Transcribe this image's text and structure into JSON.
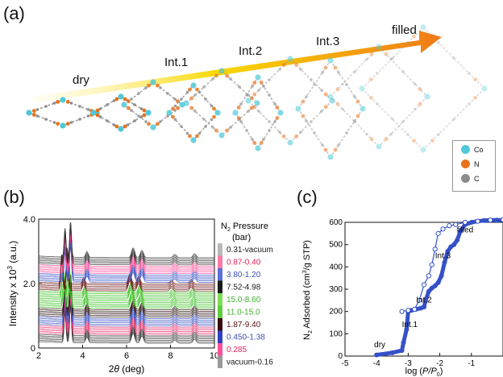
{
  "panels": {
    "a": {
      "label": "(a)",
      "stages": [
        "dry",
        "Int.1",
        "Int.2",
        "Int.3",
        "filled"
      ],
      "legend": [
        {
          "element": "Co",
          "color": "#4fc8d8"
        },
        {
          "element": "N",
          "color": "#e8721c"
        },
        {
          "element": "C",
          "color": "#8c8c8c"
        }
      ],
      "arrow_gradient": [
        "#fff8c0",
        "#f9d800",
        "#f07a18"
      ]
    },
    "b": {
      "label": "(b)"
    },
    "c": {
      "label": "(c)"
    }
  },
  "chart_data": [
    {
      "type": "line",
      "panel": "b",
      "xlabel": "2θ (deg)",
      "ylabel": "Intensity x 10³ (a.u.)",
      "xlim": [
        2,
        10
      ],
      "ylim": [
        0,
        4.0
      ],
      "xticks": [
        "2",
        "4",
        "6",
        "8",
        "10"
      ],
      "yticks": [
        "0",
        "2.0",
        "4.0"
      ],
      "legend_title": "N₂ Pressure (bar)",
      "legend_title_parts": {
        "main": "N",
        "sub": "2",
        "rest": " Pressure",
        "unit": "(bar)"
      },
      "pressure_ranges": [
        {
          "label": "0.31-vacuum",
          "color": "#1a1a1a",
          "swatch": "#b9b9b9"
        },
        {
          "label": "0.87-0.40",
          "color": "#e0245e",
          "swatch": "#ff7aa8"
        },
        {
          "label": "3.80-1.20",
          "color": "#3c4fb0",
          "swatch": "#5a6fd8"
        },
        {
          "label": "7.52-4.98",
          "color": "#1a1a1a",
          "swatch": "#1a1a1a"
        },
        {
          "label": "15.0-8.60",
          "color": "#3fae2a",
          "swatch": "#7fdd55"
        },
        {
          "label": "11.0-15.0",
          "color": "#3fae2a",
          "swatch": "#5fcc40"
        },
        {
          "label": "1.87-9.40",
          "color": "#5a1010",
          "swatch": "#3a0808"
        },
        {
          "label": "0.450-1.38",
          "color": "#3c4fb0",
          "swatch": "#3040c0"
        },
        {
          "label": "0.285",
          "color": "#e0245e",
          "swatch": "#ff4f9a"
        },
        {
          "label": "vacuum-0.16",
          "color": "#1a1a1a",
          "swatch": "#9a9a9a"
        }
      ],
      "band_colors": [
        "#333333",
        "#e8336e",
        "#3a52c4",
        "#2a1010",
        "#43c22a",
        "#43c22a",
        "#6a1010",
        "#3a52c4",
        "#ff4f9a",
        "#333333"
      ],
      "curves_per_band": 6,
      "peaks": [
        {
          "pos": 3.2,
          "h": 0.9,
          "w": 0.06
        },
        {
          "pos": 3.45,
          "h": 1.1,
          "w": 0.06
        },
        {
          "pos": 4.2,
          "h": 0.18,
          "w": 0.08
        },
        {
          "pos": 6.3,
          "h": 0.3,
          "w": 0.1
        },
        {
          "pos": 6.7,
          "h": 0.22,
          "w": 0.1
        },
        {
          "pos": 8.2,
          "h": 0.1,
          "w": 0.1
        },
        {
          "pos": 9.1,
          "h": 0.12,
          "w": 0.1
        }
      ],
      "trace_offset_step": 0.045
    },
    {
      "type": "line",
      "panel": "c",
      "xlabel": "log (P/P₀)",
      "xlabel_parts": {
        "pre": "log (",
        "italic": "P/P",
        "sub": "0",
        "post": ")"
      },
      "ylabel": "N₂ Adsorbed (cm³/g STP)",
      "xlim": [
        -5,
        0
      ],
      "ylim": [
        0,
        600
      ],
      "xticks": [
        "-5",
        "-4",
        "-3",
        "-2",
        "-1"
      ],
      "yticks": [
        "0",
        "100",
        "200",
        "300",
        "400",
        "500",
        "600"
      ],
      "annotations": [
        {
          "text": "dry",
          "x": -3.9,
          "y": 40
        },
        {
          "text": "Int.1",
          "x": -2.95,
          "y": 130
        },
        {
          "text": "Int.2",
          "x": -2.5,
          "y": 240
        },
        {
          "text": "Int.3",
          "x": -1.9,
          "y": 440
        },
        {
          "text": "filled",
          "x": -1.2,
          "y": 555
        }
      ],
      "series": [
        {
          "name": "adsorption",
          "marker": "filled",
          "x": [
            -4.0,
            -3.5,
            -3.2,
            -3.15,
            -3.05,
            -3.0,
            -2.9,
            -2.75,
            -2.6,
            -2.5,
            -2.45,
            -2.35,
            -2.25,
            -2.15,
            -2.05,
            -1.95,
            -1.85,
            -1.75,
            -1.65,
            -1.55,
            -1.45,
            -1.35,
            -1.2,
            -1.0,
            -0.8,
            -0.6,
            -0.4,
            -0.2,
            0.0
          ],
          "y": [
            5,
            15,
            25,
            60,
            120,
            200,
            205,
            210,
            215,
            220,
            250,
            290,
            305,
            315,
            330,
            360,
            420,
            470,
            490,
            500,
            520,
            560,
            590,
            600,
            605,
            608,
            610,
            610,
            610
          ]
        },
        {
          "name": "desorption",
          "marker": "open",
          "x": [
            0.0,
            -0.4,
            -0.8,
            -1.2,
            -1.5,
            -1.7,
            -1.9,
            -2.05,
            -2.15,
            -2.25,
            -2.35,
            -2.5,
            -2.65,
            -2.8,
            -3.0,
            -3.2
          ],
          "y": [
            612,
            610,
            605,
            600,
            590,
            585,
            570,
            550,
            480,
            410,
            360,
            320,
            250,
            210,
            205,
            200
          ]
        }
      ]
    }
  ]
}
